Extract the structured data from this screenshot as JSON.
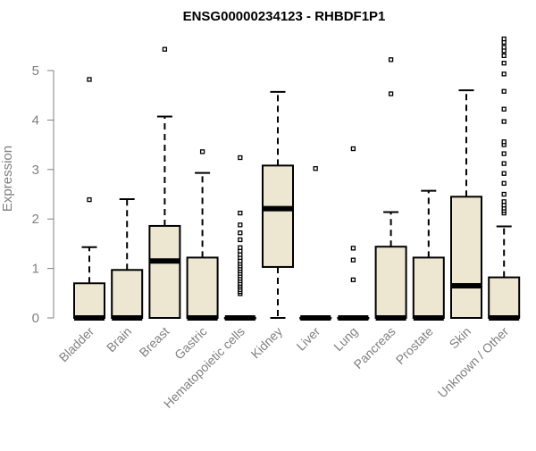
{
  "chart_data": {
    "type": "boxplot",
    "title": "ENSG00000234123 - RHBDF1P1",
    "xlabel": "",
    "ylabel": "Expression",
    "ylim": [
      0,
      5.7
    ],
    "yticks": [
      0,
      1,
      2,
      3,
      4,
      5
    ],
    "grid": false,
    "colors": {
      "box_fill": "#ede6d0",
      "stroke": "#000000",
      "axis": "#808080",
      "text": "#808080"
    },
    "categories": [
      "Bladder",
      "Brain",
      "Breast",
      "Gastric",
      "Hematopoietic cells",
      "Kidney",
      "Liver",
      "Lung",
      "Pancreas",
      "Prostate",
      "Skin",
      "Unknown / Other"
    ],
    "series": [
      {
        "category": "Bladder",
        "min": 0,
        "q1": 0,
        "median": 0,
        "q3": 0.7,
        "max": 1.43,
        "outliers": [
          2.39,
          4.82
        ]
      },
      {
        "category": "Brain",
        "min": 0,
        "q1": 0,
        "median": 0,
        "q3": 0.97,
        "max": 2.4,
        "outliers": []
      },
      {
        "category": "Breast",
        "min": 0,
        "q1": 0,
        "median": 1.15,
        "q3": 1.86,
        "max": 4.07,
        "outliers": [
          5.43
        ]
      },
      {
        "category": "Gastric",
        "min": 0,
        "q1": 0,
        "median": 0,
        "q3": 1.22,
        "max": 2.93,
        "outliers": [
          3.36
        ]
      },
      {
        "category": "Hematopoietic cells",
        "min": 0,
        "q1": 0,
        "median": 0,
        "q3": 0,
        "max": 0,
        "outliers": [
          0.49,
          0.53,
          0.57,
          0.62,
          0.66,
          0.7,
          0.75,
          0.8,
          0.85,
          0.9,
          0.95,
          1.0,
          1.05,
          1.1,
          1.15,
          1.22,
          1.28,
          1.35,
          1.42,
          1.58,
          1.72,
          1.88,
          2.12,
          3.24
        ]
      },
      {
        "category": "Kidney",
        "min": 0,
        "q1": 1.03,
        "median": 2.21,
        "q3": 3.08,
        "max": 4.57,
        "outliers": []
      },
      {
        "category": "Liver",
        "min": 0,
        "q1": 0,
        "median": 0,
        "q3": 0,
        "max": 0,
        "outliers": [
          3.02
        ]
      },
      {
        "category": "Lung",
        "min": 0,
        "q1": 0,
        "median": 0,
        "q3": 0,
        "max": 0,
        "outliers": [
          0.77,
          1.17,
          1.41,
          3.42
        ]
      },
      {
        "category": "Pancreas",
        "min": 0,
        "q1": 0,
        "median": 0,
        "q3": 1.44,
        "max": 2.14,
        "outliers": [
          4.53,
          5.22
        ]
      },
      {
        "category": "Prostate",
        "min": 0,
        "q1": 0,
        "median": 0,
        "q3": 1.22,
        "max": 2.57,
        "outliers": []
      },
      {
        "category": "Skin",
        "min": 0,
        "q1": 0,
        "median": 0.65,
        "q3": 2.45,
        "max": 4.6,
        "outliers": []
      },
      {
        "category": "Unknown / Other",
        "min": 0,
        "q1": 0,
        "median": 0,
        "q3": 0.82,
        "max": 1.85,
        "outliers": [
          2.12,
          2.17,
          2.22,
          2.28,
          2.35,
          2.5,
          2.72,
          2.92,
          3.12,
          3.32,
          3.5,
          3.56,
          3.97,
          4.22,
          4.58,
          4.93,
          5.15,
          5.3,
          5.4,
          5.47,
          5.57,
          5.64
        ]
      }
    ]
  }
}
